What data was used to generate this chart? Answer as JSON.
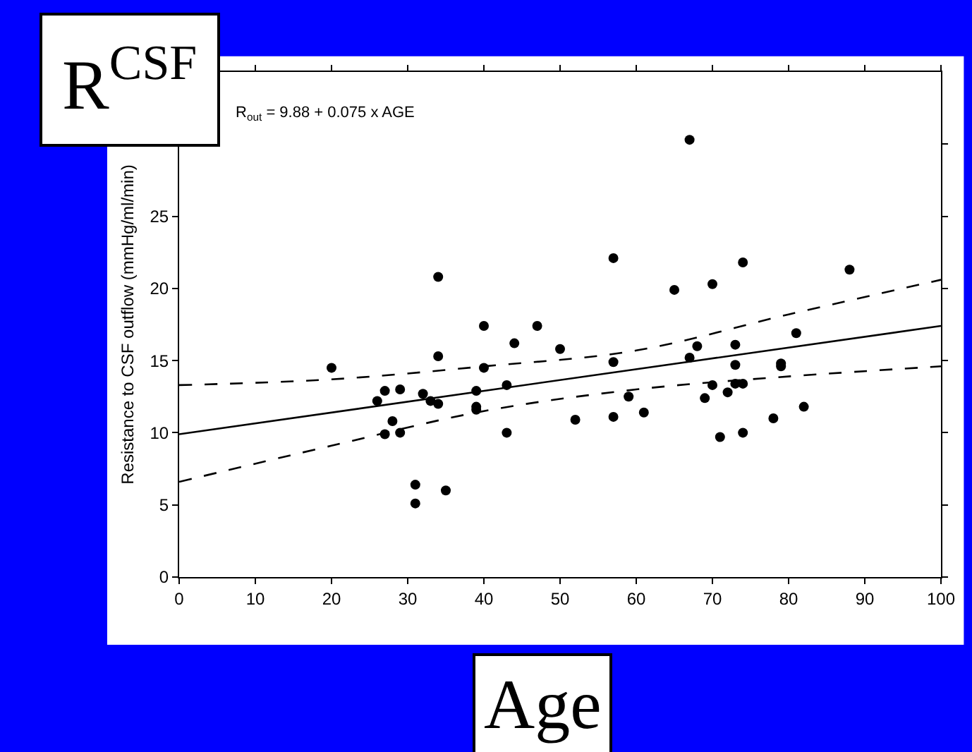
{
  "chart_data": {
    "type": "scatter",
    "title": "R$^{CSF}$",
    "xlabel": "Age",
    "ylabel": "Resistance to CSF outflow (mmHg/ml/min)",
    "annotations": [
      "R$_{out}$ = 9.88 + 0.075 x AGE"
    ],
    "xlim": [
      0,
      100
    ],
    "xticks": [
      0,
      10,
      20,
      30,
      40,
      50,
      60,
      70,
      80,
      90,
      100
    ],
    "ylim": [
      0,
      35
    ],
    "yticks": [
      0,
      5,
      10,
      15,
      20,
      25,
      {
        "value": 30,
        "label": null
      }
    ],
    "series": [
      {
        "marker": "circle",
        "color": "#000000",
        "x": [
          20,
          26,
          27,
          27,
          28,
          29,
          29,
          31,
          31,
          32,
          33,
          34,
          34,
          34,
          35,
          39,
          39,
          39,
          40,
          40,
          43,
          43,
          44,
          47,
          50,
          52,
          57,
          57,
          57,
          59,
          61,
          65,
          67,
          67,
          68,
          69,
          70,
          70,
          71,
          72,
          73,
          73,
          73,
          74,
          74,
          74,
          78,
          79,
          79,
          81,
          82,
          88
        ],
        "values": [
          14.5,
          12.2,
          12.9,
          9.9,
          10.8,
          13.0,
          10.0,
          6.4,
          5.1,
          12.7,
          12.2,
          12.0,
          20.8,
          15.3,
          6.0,
          12.9,
          11.8,
          11.6,
          17.4,
          14.5,
          13.3,
          10.0,
          16.2,
          17.4,
          15.8,
          10.9,
          22.1,
          14.9,
          11.1,
          12.5,
          11.4,
          19.9,
          30.3,
          15.2,
          16.0,
          12.4,
          20.3,
          13.3,
          9.7,
          12.8,
          16.1,
          14.7,
          13.4,
          21.8,
          13.4,
          10.0,
          11.0,
          14.8,
          14.6,
          16.9,
          11.8,
          21.3
        ]
      },
      {
        "type": "line",
        "color": "#000000",
        "line_style": "solid",
        "x": [
          0,
          100
        ],
        "values": [
          9.9,
          17.4
        ]
      },
      {
        "type": "line",
        "color": "#000000",
        "line_style": "dashed",
        "x": [
          0,
          20,
          40,
          60,
          80,
          100
        ],
        "values": [
          13.3,
          13.7,
          14.6,
          15.7,
          18.2,
          20.6
        ]
      },
      {
        "type": "line",
        "color": "#000000",
        "line_style": "dashed",
        "x": [
          0,
          20,
          40,
          60,
          80,
          100
        ],
        "values": [
          6.6,
          9.1,
          11.5,
          13.0,
          13.9,
          14.6
        ]
      }
    ]
  }
}
